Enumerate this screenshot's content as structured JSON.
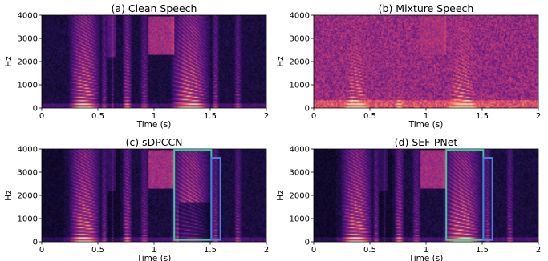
{
  "chart_data": [
    {
      "type": "heatmap",
      "title": "(a) Clean Speech",
      "xlabel": "Time (s)",
      "ylabel": "Hz",
      "xlim": [
        0,
        2
      ],
      "ylim": [
        0,
        4000
      ],
      "xticks": [
        "0",
        "0.5",
        "1",
        "1.5",
        "2"
      ],
      "yticks": [
        "0",
        "1000",
        "2000",
        "3000",
        "4000"
      ],
      "colormap": "magma",
      "boxes": []
    },
    {
      "type": "heatmap",
      "title": "(b) Mixture Speech",
      "xlabel": "Time (s)",
      "ylabel": "Hz",
      "xlim": [
        0,
        2
      ],
      "ylim": [
        0,
        4000
      ],
      "xticks": [
        "0",
        "0.5",
        "1",
        "1.5",
        "2"
      ],
      "yticks": [
        "0",
        "1000",
        "2000",
        "3000",
        "4000"
      ],
      "colormap": "magma",
      "boxes": []
    },
    {
      "type": "heatmap",
      "title": "(c) sDPCCN",
      "xlabel": "Time (s)",
      "ylabel": "Hz",
      "xlim": [
        0,
        2
      ],
      "ylim": [
        0,
        4000
      ],
      "xticks": [
        "0",
        "0.5",
        "1",
        "1.5",
        "2"
      ],
      "yticks": [
        "0",
        "1000",
        "2000",
        "3000",
        "4000"
      ],
      "colormap": "magma",
      "boxes": [
        {
          "color": "#3ec9a0",
          "x0": 1.18,
          "x1": 1.51,
          "y0": 80,
          "y1": 3960
        },
        {
          "color": "#4a7fe0",
          "x0": 1.51,
          "x1": 1.59,
          "y0": 80,
          "y1": 3620
        }
      ]
    },
    {
      "type": "heatmap",
      "title": "(d) SEF-PNet",
      "xlabel": "Time (s)",
      "ylabel": "Hz",
      "xlim": [
        0,
        2
      ],
      "ylim": [
        0,
        4000
      ],
      "xticks": [
        "0",
        "0.5",
        "1",
        "1.5",
        "2"
      ],
      "yticks": [
        "0",
        "1000",
        "2000",
        "3000",
        "4000"
      ],
      "colormap": "magma",
      "boxes": [
        {
          "color": "#3ec9a0",
          "x0": 1.18,
          "x1": 1.51,
          "y0": 80,
          "y1": 3960
        },
        {
          "color": "#4a7fe0",
          "x0": 1.51,
          "x1": 1.59,
          "y0": 80,
          "y1": 3620
        }
      ]
    }
  ]
}
